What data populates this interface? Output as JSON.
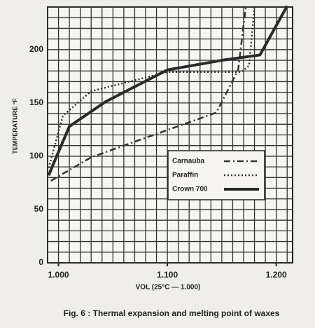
{
  "chart_data": {
    "type": "line",
    "title": "Fig. 6 : Thermal expansion and melting point of waxes",
    "x_label": "VOL (25°C — 1.000)",
    "y_label": "TEMPERATURE °F",
    "xlim": [
      0.99,
      1.215
    ],
    "ylim": [
      0,
      240
    ],
    "xticks": [
      {
        "value": 1.0,
        "label": "1.000"
      },
      {
        "value": 1.1,
        "label": "1.100"
      },
      {
        "value": 1.2,
        "label": "1.200"
      }
    ],
    "yticks": [
      0,
      50,
      100,
      150,
      200
    ],
    "x_minor_ticks": [
      0.99,
      1.0,
      1.01,
      1.02,
      1.03,
      1.04,
      1.05,
      1.06,
      1.07,
      1.08,
      1.09,
      1.1,
      1.11,
      1.12,
      1.13,
      1.14,
      1.15,
      1.16,
      1.17,
      1.18,
      1.19,
      1.2,
      1.21
    ],
    "y_minor_ticks": [
      0,
      10,
      20,
      30,
      40,
      50,
      60,
      70,
      80,
      90,
      100,
      110,
      120,
      130,
      140,
      150,
      160,
      170,
      180,
      190,
      200,
      210,
      220,
      230,
      240
    ],
    "grid": true,
    "legend": "center-right",
    "series": [
      {
        "name": "Carnauba",
        "color": "#333333",
        "style": "dash-dot",
        "x": [
          0.993,
          1.03,
          1.145,
          1.165,
          1.172
        ],
        "values": [
          77,
          99,
          141,
          181,
          240
        ]
      },
      {
        "name": "Paraffin",
        "color": "#333333",
        "style": "dotted",
        "x": [
          0.991,
          1.004,
          1.03,
          1.1,
          1.168,
          1.175,
          1.18
        ],
        "values": [
          89,
          138,
          161,
          179,
          179,
          185,
          240
        ]
      },
      {
        "name": "Crown 700",
        "color": "#2a2a2a",
        "style": "solid",
        "x": [
          0.991,
          0.995,
          1.01,
          1.043,
          1.1,
          1.15,
          1.185,
          1.21
        ],
        "values": [
          82,
          92,
          128,
          151,
          181,
          190,
          195,
          241
        ]
      }
    ]
  }
}
